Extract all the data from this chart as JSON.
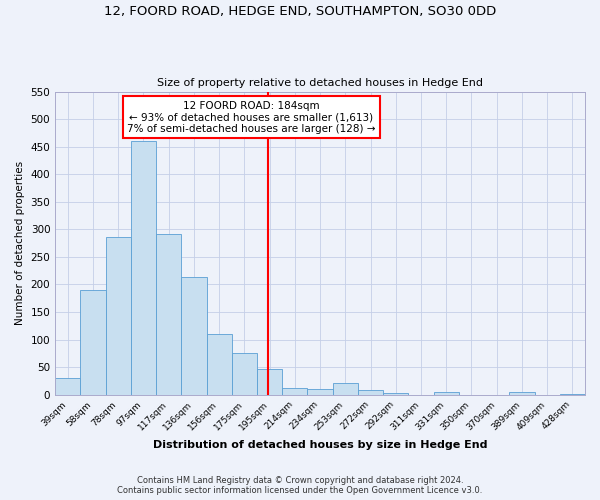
{
  "title1": "12, FOORD ROAD, HEDGE END, SOUTHAMPTON, SO30 0DD",
  "title2": "Size of property relative to detached houses in Hedge End",
  "xlabel": "Distribution of detached houses by size in Hedge End",
  "ylabel": "Number of detached properties",
  "bin_labels": [
    "39sqm",
    "58sqm",
    "78sqm",
    "97sqm",
    "117sqm",
    "136sqm",
    "156sqm",
    "175sqm",
    "195sqm",
    "214sqm",
    "234sqm",
    "253sqm",
    "272sqm",
    "292sqm",
    "311sqm",
    "331sqm",
    "350sqm",
    "370sqm",
    "389sqm",
    "409sqm",
    "428sqm"
  ],
  "bar_values": [
    30,
    190,
    287,
    460,
    291,
    213,
    110,
    75,
    46,
    13,
    10,
    22,
    8,
    3,
    0,
    5,
    0,
    0,
    5,
    0,
    2
  ],
  "bar_color": "#c8dff0",
  "bar_edge_color": "#5a9fd4",
  "vline_color": "red",
  "annotation_title": "12 FOORD ROAD: 184sqm",
  "annotation_line1": "← 93% of detached houses are smaller (1,613)",
  "annotation_line2": "7% of semi-detached houses are larger (128) →",
  "annotation_box_color": "red",
  "ylim": [
    0,
    550
  ],
  "yticks": [
    0,
    50,
    100,
    150,
    200,
    250,
    300,
    350,
    400,
    450,
    500,
    550
  ],
  "footer1": "Contains HM Land Registry data © Crown copyright and database right 2024.",
  "footer2": "Contains public sector information licensed under the Open Government Licence v3.0.",
  "bg_color": "#eef2fa",
  "grid_color": "#c5cfe8"
}
